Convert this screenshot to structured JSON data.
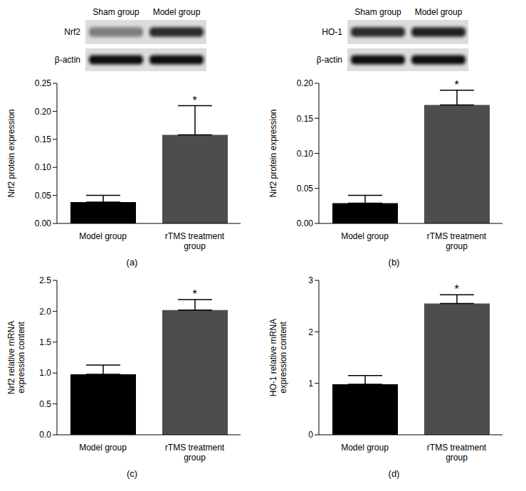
{
  "chart_data": [
    {
      "type": "bar",
      "caption": "(a)",
      "y_label": "Nrf2 protein expression",
      "categories": [
        "Model group",
        "rTMS treatment group"
      ],
      "values": [
        0.038,
        0.158
      ],
      "error": [
        0.012,
        0.052
      ],
      "colors": [
        "#000000",
        "#4d4d4d"
      ],
      "ylim": [
        0,
        0.25
      ],
      "yticks": [
        {
          "value": 0,
          "label": "0.00"
        },
        0.05,
        {
          "value": 0.1,
          "label": "0.10"
        },
        0.15,
        {
          "value": 0.2,
          "label": "0.20"
        },
        0.25
      ],
      "annotations": [
        {
          "category": "rTMS treatment group",
          "text": "*"
        }
      ]
    },
    {
      "type": "bar",
      "caption": "(b)",
      "y_label": "Nrf2 protein expression",
      "categories": [
        "Model group",
        "rTMS treatment group"
      ],
      "values": [
        0.029,
        0.169
      ],
      "error": [
        0.011,
        0.021
      ],
      "colors": [
        "#000000",
        "#4d4d4d"
      ],
      "ylim": [
        0,
        0.2
      ],
      "yticks": [
        {
          "value": 0,
          "label": "0.00"
        },
        0.05,
        {
          "value": 0.1,
          "label": "0.10"
        },
        0.15,
        {
          "value": 0.2,
          "label": "0.20"
        }
      ],
      "annotations": [
        {
          "category": "rTMS treatment group",
          "text": "*"
        }
      ]
    },
    {
      "type": "bar",
      "caption": "(c)",
      "y_label": "Nrf2 relative mRNA expression content",
      "categories": [
        "Model group",
        "rTMS treatment group"
      ],
      "values": [
        0.98,
        2.02
      ],
      "error": [
        0.15,
        0.17
      ],
      "colors": [
        "#000000",
        "#4d4d4d"
      ],
      "ylim": [
        0,
        2.5
      ],
      "yticks": [
        {
          "value": 0,
          "label": "0.0"
        },
        0.5,
        {
          "value": 1,
          "label": "1.0"
        },
        1.5,
        {
          "value": 2,
          "label": "2.0"
        },
        2.5
      ],
      "annotations": [
        {
          "category": "rTMS treatment group",
          "text": "*"
        }
      ]
    },
    {
      "type": "bar",
      "caption": "(d)",
      "y_label": "HO-1 relative mRNA expression content",
      "categories": [
        "Model group",
        "rTMS treatment group"
      ],
      "values": [
        0.98,
        2.55
      ],
      "error": [
        0.17,
        0.17
      ],
      "colors": [
        "#000000",
        "#4d4d4d"
      ],
      "ylim": [
        0,
        3
      ],
      "yticks": [
        0,
        1,
        2,
        3
      ],
      "annotations": [
        {
          "category": "rTMS treatment group",
          "text": "*"
        }
      ]
    }
  ],
  "blots": [
    {
      "lanes": [
        "Sham group",
        "Model group"
      ],
      "bands": [
        "Nrf2",
        "β-actin"
      ]
    },
    {
      "lanes": [
        "Sham group",
        "Model group"
      ],
      "bands": [
        "HO-1",
        "β-actin"
      ]
    }
  ]
}
